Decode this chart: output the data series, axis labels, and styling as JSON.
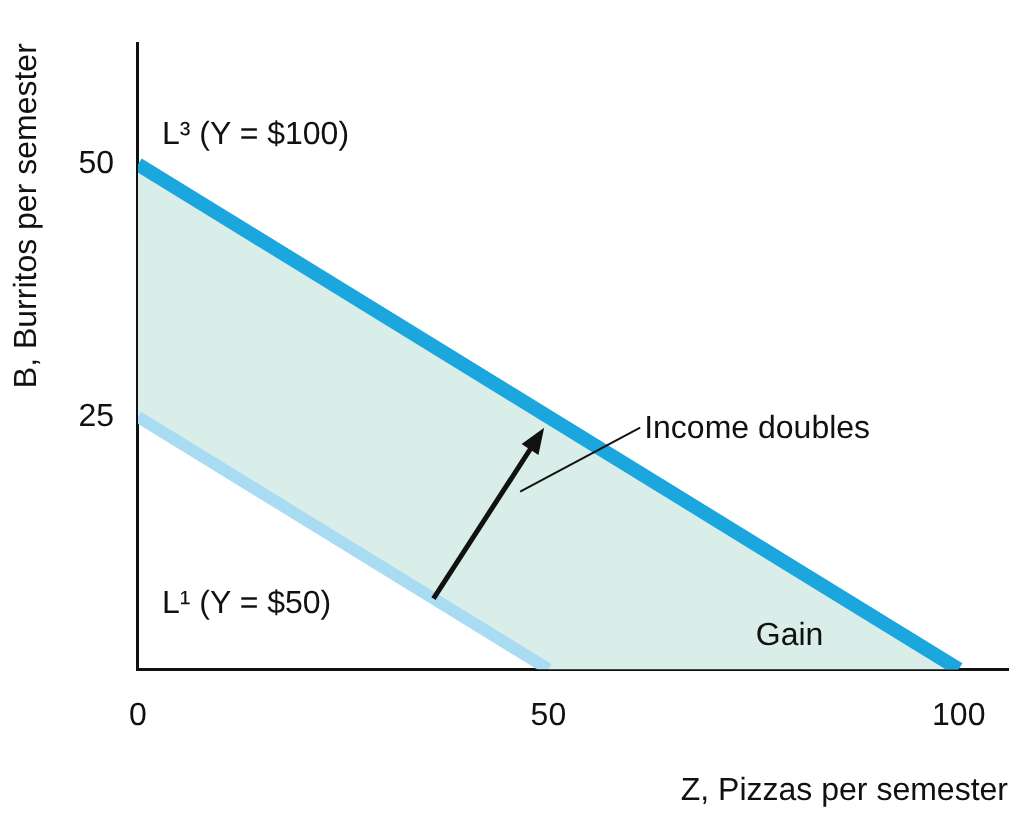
{
  "chart_data": {
    "type": "line",
    "xlabel": "Z, Pizzas per semester",
    "ylabel": "B, Burritos per semester",
    "xlim": [
      0,
      106
    ],
    "ylim": [
      0,
      62
    ],
    "xticks": [
      0,
      50,
      100
    ],
    "yticks": [
      25,
      50
    ],
    "grid": false,
    "legend": false,
    "marker": "none",
    "line_style": "solid",
    "series": [
      {
        "name": "L¹ (Y = $50)",
        "color": "#a9dcf3",
        "x": [
          0,
          50
        ],
        "values": [
          25,
          0
        ]
      },
      {
        "name": "L³ (Y = $100)",
        "color": "#1ba6de",
        "x": [
          0,
          100
        ],
        "values": [
          50,
          0
        ]
      }
    ],
    "annotations": [
      "Income doubles",
      "Gain"
    ]
  }
}
